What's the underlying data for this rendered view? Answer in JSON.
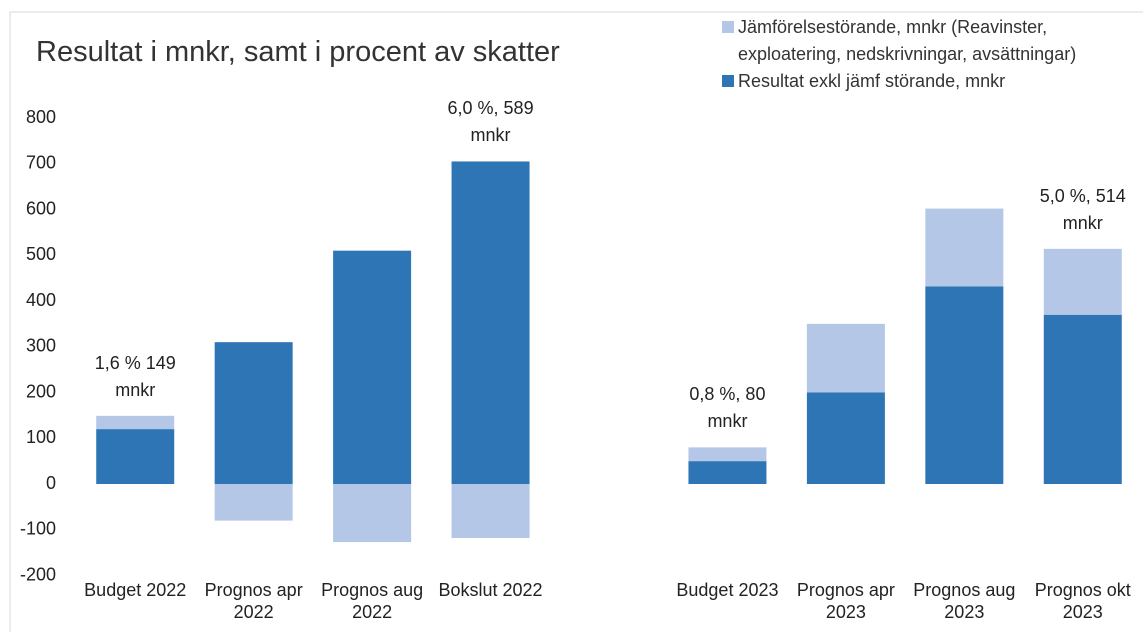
{
  "chart_data": {
    "type": "stacked_bar",
    "title": "Resultat i mnkr, samt i procent av skatter",
    "categories": [
      "Budget 2022",
      "Prognos apr 2022",
      "Prognos aug 2022",
      "Bokslut 2022",
      null,
      "Budget 2023",
      "Prognos apr 2023",
      "Prognos aug 2023",
      "Prognos okt 2023"
    ],
    "series": [
      {
        "name": "Resultat exkl jämf störande, mnkr",
        "color": "#2e75b6",
        "values": [
          120,
          310,
          510,
          705,
          null,
          50,
          200,
          432,
          370
        ]
      },
      {
        "name": "Jämförelsestörande, mnkr (Reavinster, exploatering, nedskrivningar, avsättningar)",
        "color": "#b4c7e7",
        "values": [
          29,
          -80,
          -127,
          -118,
          null,
          30,
          150,
          170,
          144
        ]
      }
    ],
    "annotations": [
      "1,6 %  149 mnkr",
      null,
      null,
      "6,0 %, 589 mnkr",
      null,
      "0,8 %, 80 mnkr",
      null,
      null,
      "5,0 %, 514 mnkr"
    ],
    "ylim": [
      -200,
      800
    ],
    "yticks": [
      -200,
      -100,
      0,
      100,
      200,
      300,
      400,
      500,
      600,
      700,
      800
    ],
    "legend": "top-right"
  }
}
